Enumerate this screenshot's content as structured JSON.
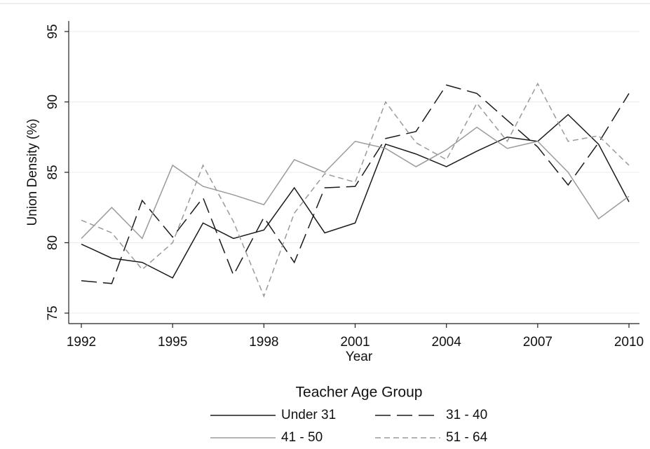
{
  "chart_data": {
    "type": "line",
    "x_label": "Year",
    "y_label": "Union Density (%)",
    "legend_title": "Teacher Age Group",
    "x": [
      1992,
      1993,
      1994,
      1995,
      1996,
      1997,
      1998,
      1999,
      2000,
      2001,
      2002,
      2003,
      2004,
      2005,
      2006,
      2007,
      2008,
      2009,
      2010
    ],
    "xlim": [
      1992,
      2010
    ],
    "xticks": [
      1992,
      1995,
      1998,
      2001,
      2004,
      2007,
      2010
    ],
    "ylim": [
      75,
      95
    ],
    "yticks": [
      75,
      80,
      85,
      90,
      95
    ],
    "grid": true,
    "series": [
      {
        "name": "Under 31",
        "color": "#1a1a1a",
        "dash": "solid",
        "values": [
          79.9,
          78.9,
          78.6,
          77.5,
          81.4,
          80.3,
          80.9,
          83.9,
          80.7,
          81.4,
          87.0,
          86.3,
          85.4,
          86.5,
          87.5,
          87.2,
          89.1,
          87.0,
          82.9
        ]
      },
      {
        "name": "31 - 40",
        "color": "#1a1a1a",
        "dash": "long",
        "values": [
          77.3,
          77.1,
          83.0,
          80.4,
          83.2,
          77.7,
          81.8,
          78.6,
          83.9,
          84.0,
          87.4,
          87.9,
          91.2,
          90.6,
          88.7,
          86.8,
          84.1,
          87.1,
          90.6
        ]
      },
      {
        "name": "41 - 50",
        "color": "#9a9a9a",
        "dash": "solid",
        "values": [
          80.3,
          82.5,
          80.3,
          85.5,
          84.0,
          83.4,
          82.7,
          85.9,
          85.0,
          87.2,
          86.7,
          85.4,
          86.6,
          88.2,
          86.7,
          87.2,
          85.0,
          81.7,
          83.3
        ]
      },
      {
        "name": "51 - 64",
        "color": "#9a9a9a",
        "dash": "short",
        "values": [
          81.6,
          80.7,
          78.1,
          80.0,
          85.5,
          81.5,
          76.2,
          82.1,
          84.9,
          84.3,
          90.0,
          87.1,
          85.9,
          89.9,
          87.2,
          91.3,
          87.2,
          87.6,
          85.5
        ]
      }
    ]
  }
}
